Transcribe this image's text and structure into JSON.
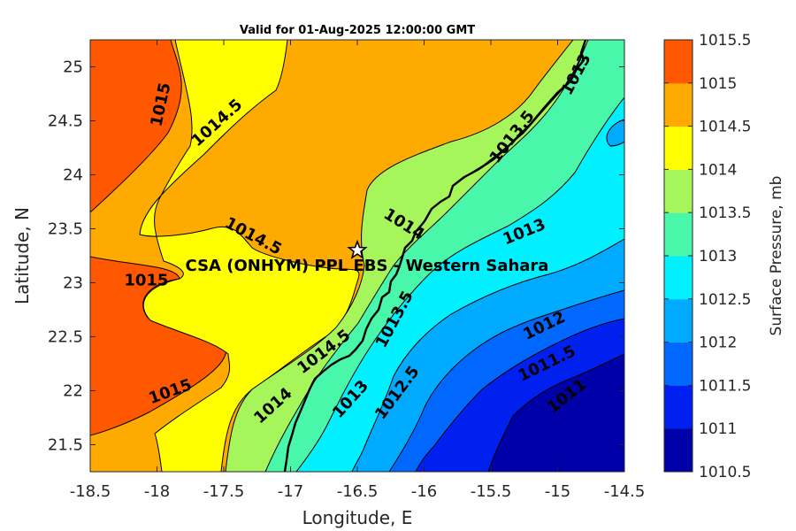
{
  "title": "Valid for 01-Aug-2025 12:00:00 GMT",
  "xlabel": "Longitude, E",
  "ylabel": "Latitude, N",
  "colorbar_label": "Surface Pressure, mb",
  "station_label": "CSA (ONHYM) PPL EBS  - Western Sahara",
  "station": {
    "lon": -16.5,
    "lat": 23.3,
    "marker": "star-icon"
  },
  "map_data": {
    "type": "filled-contour",
    "xlim": [
      -18.5,
      -14.5
    ],
    "ylim": [
      21.25,
      25.25
    ],
    "xticks": [
      -18.5,
      -18,
      -17.5,
      -17,
      -16.5,
      -16,
      -15.5,
      -15,
      -14.5
    ],
    "yticks": [
      21.5,
      22,
      22.5,
      23,
      23.5,
      24,
      24.5,
      25
    ],
    "xtick_labels": [
      "-18.5",
      "-18",
      "-17.5",
      "-17",
      "-16.5",
      "-16",
      "-15.5",
      "-15",
      "-14.5"
    ],
    "ytick_labels": [
      "21.5",
      "22",
      "22.5",
      "23",
      "23.5",
      "24",
      "24.5",
      "25"
    ],
    "levels": [
      1010.5,
      1011,
      1011.5,
      1012,
      1012.5,
      1013,
      1013.5,
      1014,
      1014.5,
      1015,
      1015.5
    ],
    "level_labels": [
      "1010.5",
      "1011",
      "1011.5",
      "1012",
      "1012.5",
      "1013",
      "1013.5",
      "1014",
      "1014.5",
      "1015",
      "1015.5"
    ],
    "colors": [
      "#0000a8",
      "#0020f0",
      "#0068ff",
      "#00aaff",
      "#00f0ff",
      "#48f7aa",
      "#a6f55a",
      "#ffff00",
      "#ffaa00",
      "#ff5800",
      "#ff0000"
    ],
    "contour_labels": [
      {
        "text": "1015",
        "lon": -17.97,
        "lat": 24.65,
        "angle": -78
      },
      {
        "text": "1014.5",
        "lon": -17.55,
        "lat": 24.48,
        "angle": -42
      },
      {
        "text": "1014.5",
        "lon": -17.28,
        "lat": 23.43,
        "angle": 28
      },
      {
        "text": "1015",
        "lon": -18.08,
        "lat": 23.02,
        "angle": 0
      },
      {
        "text": "1014",
        "lon": -16.15,
        "lat": 23.54,
        "angle": 32
      },
      {
        "text": "1013.5",
        "lon": -15.34,
        "lat": 24.35,
        "angle": -52
      },
      {
        "text": "1013",
        "lon": -14.86,
        "lat": 24.93,
        "angle": -62
      },
      {
        "text": "1013",
        "lon": -15.25,
        "lat": 23.47,
        "angle": -22
      },
      {
        "text": "1013.5",
        "lon": -16.22,
        "lat": 22.66,
        "angle": -62
      },
      {
        "text": "1014.5",
        "lon": -16.75,
        "lat": 22.36,
        "angle": -37
      },
      {
        "text": "1015",
        "lon": -17.9,
        "lat": 21.99,
        "angle": -20
      },
      {
        "text": "1014",
        "lon": -17.13,
        "lat": 21.86,
        "angle": -42
      },
      {
        "text": "1013",
        "lon": -16.55,
        "lat": 21.92,
        "angle": -48
      },
      {
        "text": "1012.5",
        "lon": -16.2,
        "lat": 21.98,
        "angle": -53
      },
      {
        "text": "1012",
        "lon": -15.1,
        "lat": 22.6,
        "angle": -26
      },
      {
        "text": "1011.5",
        "lon": -15.08,
        "lat": 22.25,
        "angle": -26
      },
      {
        "text": "1011",
        "lon": -14.93,
        "lat": 21.95,
        "angle": -38
      }
    ]
  }
}
